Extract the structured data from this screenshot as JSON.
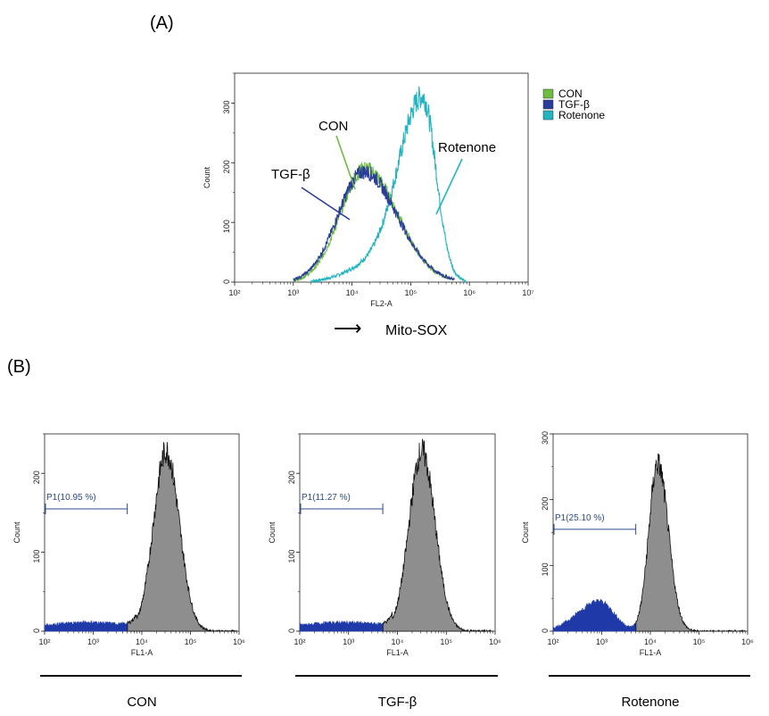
{
  "figure": {
    "panel_a_label": "(A)",
    "panel_b_label": "(B)",
    "mito_sox_label": "Mito-SOX",
    "arrow_glyph": "⟶"
  },
  "chart_data": [
    {
      "type": "area",
      "panel": "A",
      "title": "",
      "xlabel": "FL2-A",
      "ylabel": "Count",
      "xscale": "log",
      "xlim_exp": [
        2,
        7
      ],
      "ylim": [
        0,
        350
      ],
      "yticks": [
        "0",
        "100",
        "200",
        "300"
      ],
      "xticks": [
        "10²",
        "10³",
        "10⁴",
        "10⁵",
        "10⁶",
        "10⁷"
      ],
      "legend": [
        {
          "label": "CON",
          "color": "#6dbd3f"
        },
        {
          "label": "TGF-β",
          "color": "#2a3d9a"
        },
        {
          "label": "Rotenone",
          "color": "#22b5c1"
        }
      ],
      "legend_position": "top-right",
      "annotations": [
        "CON",
        "TGF-β",
        "Rotenone"
      ],
      "series": [
        {
          "name": "CON",
          "color": "#6dbd3f",
          "peak_log10": 4.22,
          "peak_count": 190,
          "start_log10": 3.0,
          "end_log10": 5.7
        },
        {
          "name": "TGF-β",
          "color": "#2a3d9a",
          "peak_log10": 4.2,
          "peak_count": 185,
          "start_log10": 3.0,
          "end_log10": 5.75
        },
        {
          "name": "Rotenone",
          "color": "#22b5c1",
          "peak_log10": 5.2,
          "peak_count": 310,
          "start_log10": 3.3,
          "end_log10": 5.95
        }
      ]
    },
    {
      "type": "area",
      "panel": "B",
      "group_label": "CON",
      "xlabel": "FL1-A",
      "ylabel": "Count",
      "xscale": "log",
      "xlim_exp": [
        2,
        6
      ],
      "ylim": [
        0,
        250
      ],
      "yticks": [
        "0",
        "100",
        "200"
      ],
      "xticks": [
        "10²",
        "10³",
        "10⁴",
        "10⁵",
        "10⁶"
      ],
      "gate": {
        "label": "P1(10.95 %)",
        "from_log10": 2.0,
        "to_log10": 3.7,
        "count": 155
      },
      "low_population": {
        "peak_log10": 2.9,
        "peak_count": 10
      },
      "main_population": {
        "peak_log10": 4.5,
        "peak_count": 228
      }
    },
    {
      "type": "area",
      "panel": "B",
      "group_label": "TGF-β",
      "xlabel": "FL1-A",
      "ylabel": "Count",
      "xscale": "log",
      "xlim_exp": [
        2,
        6
      ],
      "ylim": [
        0,
        250
      ],
      "yticks": [
        "0",
        "100",
        "200"
      ],
      "xticks": [
        "10²",
        "10³",
        "10⁴",
        "10⁵",
        "10⁶"
      ],
      "gate": {
        "label": "P1(11.27 %)",
        "from_log10": 2.0,
        "to_log10": 3.7,
        "count": 155
      },
      "low_population": {
        "peak_log10": 2.9,
        "peak_count": 10
      },
      "main_population": {
        "peak_log10": 4.5,
        "peak_count": 228
      }
    },
    {
      "type": "area",
      "panel": "B",
      "group_label": "Rotenone",
      "xlabel": "FL1-A",
      "ylabel": "Count",
      "xscale": "log",
      "xlim_exp": [
        2,
        6
      ],
      "ylim": [
        0,
        300
      ],
      "yticks": [
        "0",
        "100",
        "200",
        "300"
      ],
      "xticks": [
        "10²",
        "10³",
        "10⁴",
        "10⁵",
        "10⁶"
      ],
      "gate": {
        "label": "P1(25.10 %)",
        "from_log10": 2.0,
        "to_log10": 3.7,
        "count": 155
      },
      "low_population": {
        "peak_log10": 2.95,
        "peak_count": 45
      },
      "main_population": {
        "peak_log10": 4.15,
        "peak_count": 255
      }
    }
  ]
}
